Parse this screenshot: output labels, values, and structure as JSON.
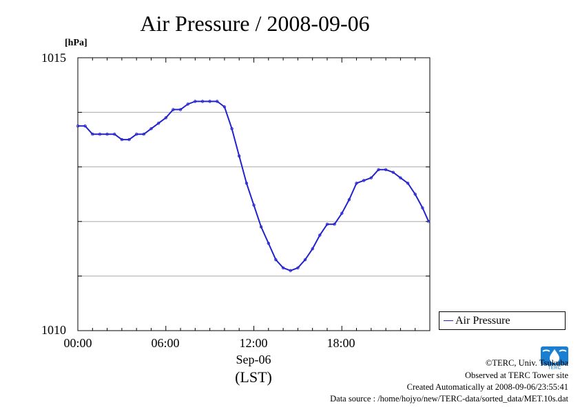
{
  "chart_data": {
    "type": "line",
    "title": "Air Pressure / 2008-09-06",
    "unit_label": "[hPa]",
    "ylim": [
      1010,
      1015
    ],
    "y_tick_labels": [
      "1015",
      "1010"
    ],
    "y_gridlines": [
      1011,
      1012,
      1013,
      1014
    ],
    "xlim": [
      "00:00",
      "24:00"
    ],
    "x_tick_labels": [
      "00:00",
      "06:00",
      "12:00",
      "18:00"
    ],
    "x_date_label": "Sep-06",
    "x_timezone_label": "(LST)",
    "grid": true,
    "legend_position": "bottom-right",
    "series": [
      {
        "name": "Air Pressure",
        "color": "#2222cc",
        "x": [
          "00:00",
          "00:30",
          "01:00",
          "01:30",
          "02:00",
          "02:30",
          "03:00",
          "03:30",
          "04:00",
          "04:30",
          "05:00",
          "05:30",
          "06:00",
          "06:30",
          "07:00",
          "07:30",
          "08:00",
          "08:30",
          "09:00",
          "09:30",
          "10:00",
          "10:30",
          "11:00",
          "11:30",
          "12:00",
          "12:30",
          "13:00",
          "13:30",
          "14:00",
          "14:30",
          "15:00",
          "15:30",
          "16:00",
          "16:30",
          "17:00",
          "17:30",
          "18:00",
          "18:30",
          "19:00",
          "19:30",
          "20:00",
          "20:30",
          "21:00",
          "21:30",
          "22:00",
          "22:30",
          "23:00",
          "23:30",
          "23:55"
        ],
        "y": [
          1013.75,
          1013.75,
          1013.6,
          1013.6,
          1013.6,
          1013.6,
          1013.5,
          1013.5,
          1013.6,
          1013.6,
          1013.7,
          1013.8,
          1013.9,
          1014.05,
          1014.05,
          1014.15,
          1014.2,
          1014.2,
          1014.2,
          1014.2,
          1014.1,
          1013.7,
          1013.2,
          1012.7,
          1012.3,
          1011.9,
          1011.6,
          1011.3,
          1011.15,
          1011.1,
          1011.15,
          1011.3,
          1011.5,
          1011.75,
          1011.95,
          1011.95,
          1012.15,
          1012.4,
          1012.7,
          1012.75,
          1012.8,
          1012.95,
          1012.95,
          1012.9,
          1012.8,
          1012.7,
          1012.5,
          1012.25,
          1012.0
        ]
      }
    ]
  },
  "footer": {
    "copyright": "©TERC, Univ. Tsukuba",
    "observed": "Observed at TERC Tower site",
    "created": "Created Automatically at 2008-09-06/23:55:41",
    "source": "Data source : /home/hojyo/new/TERC-data/sorted_data/MET.10s.dat"
  },
  "logo": {
    "text": "TERC",
    "color": "#1a7fd0"
  }
}
